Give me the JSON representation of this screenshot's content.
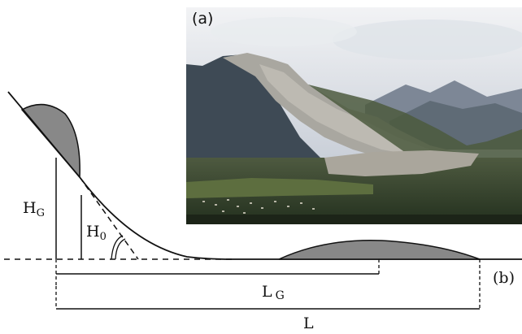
{
  "photo": {
    "label": "(a)",
    "subject": "mountain-landslide-photo"
  },
  "diagram": {
    "label": "(b)",
    "symbols": {
      "HG_main": "H",
      "HG_sub": "G",
      "H0_main": "H",
      "H0_sub": "0",
      "LG_main": "L",
      "LG_sub": "G",
      "L": "L"
    },
    "colors": {
      "deposit": "#888888",
      "line": "#111111"
    }
  }
}
